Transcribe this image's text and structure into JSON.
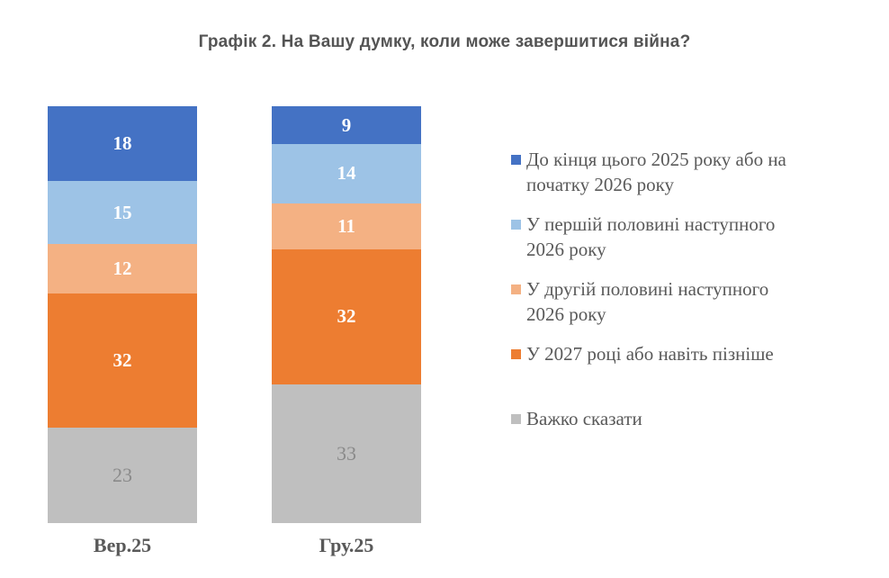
{
  "title": "Графік 2. На Вашу думку, коли може завершитися війна?",
  "chart_data": {
    "type": "bar",
    "subtype": "stacked-vertical",
    "categories": [
      "Вер.25",
      "Гру.25"
    ],
    "series": [
      {
        "name": "До кінця цього 2025 року або на\nпочатку 2026 року",
        "color": "#4472C4",
        "values": [
          18,
          9
        ]
      },
      {
        "name": "У першій половині наступного\n2026 року",
        "color": "#9DC3E6",
        "values": [
          15,
          14
        ]
      },
      {
        "name": "У другій половині наступного\n2026 року",
        "color": "#F4B183",
        "values": [
          12,
          11
        ]
      },
      {
        "name": "У 2027 році або навіть пізніше",
        "color": "#ED7D31",
        "values": [
          32,
          32
        ]
      },
      {
        "name": "Важко сказати",
        "color": "#BFBFBF",
        "values": [
          23,
          33
        ]
      }
    ],
    "ylim": [
      0,
      100
    ],
    "grid": false,
    "legend_position": "right",
    "value_labels": "inside-center",
    "label_colors": {
      "on_colored_segments": "#FFFFFF",
      "on_gray_segment": "#8A8A8A"
    },
    "text_colors": {
      "title": "#545454",
      "legend": "#595959",
      "axis_labels": "#595959"
    }
  }
}
